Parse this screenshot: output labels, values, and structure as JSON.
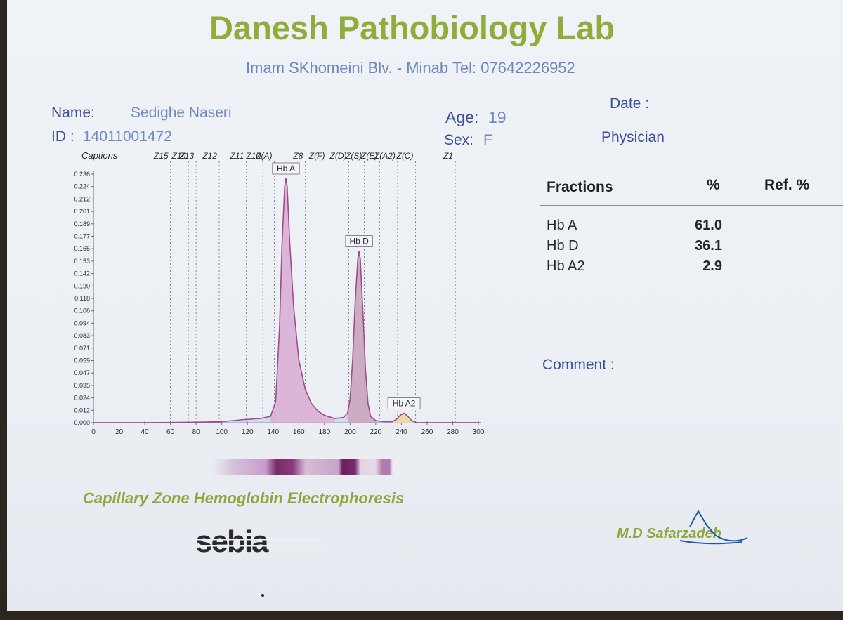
{
  "lab": {
    "name": "Danesh Pathobiology Lab",
    "address": "Imam SKhomeini Blv. - Minab Tel: 07642226952"
  },
  "patient": {
    "name_label": "Name:",
    "name": "Sedighe Naseri",
    "id_label": "ID :",
    "id": "14011001472",
    "age_label": "Age:",
    "age": "19",
    "sex_label": "Sex:",
    "sex": "F",
    "date_label": "Date :",
    "physician_label": "Physician"
  },
  "results": {
    "headers": {
      "fraction": "Fractions",
      "percent": "%",
      "ref": "Ref. %"
    },
    "rows": [
      {
        "name": "Hb A",
        "percent": "61.0"
      },
      {
        "name": "Hb D",
        "percent": "36.1"
      },
      {
        "name": "Hb A2",
        "percent": "2.9"
      }
    ]
  },
  "comment_label": "Comment :",
  "method": "Capillary Zone Hemoglobin Electrophoresis",
  "signature": "M.D Safarzadeh",
  "logo": "sebia",
  "colors": {
    "title_green": "#90ad3c",
    "label_blue": "#3b4f9a",
    "hba_fill": "#e0a8d2",
    "hbd_fill": "#c9a0b8",
    "hba2_fill": "#f0d9a2",
    "curve": "#a04b8c"
  },
  "chart_data": {
    "type": "line",
    "captions_label": "Captions",
    "zones": [
      {
        "label": "Z15",
        "x": 60
      },
      {
        "label": "Z14",
        "x": 74
      },
      {
        "label": "Z13",
        "x": 80
      },
      {
        "label": "Z12",
        "x": 98
      },
      {
        "label": "Z11",
        "x": 119
      },
      {
        "label": "Z10",
        "x": 132
      },
      {
        "label": "Z(A)",
        "x": 141
      },
      {
        "label": "Z8",
        "x": 165
      },
      {
        "label": "Z(F)",
        "x": 182
      },
      {
        "label": "Z(D)",
        "x": 199
      },
      {
        "label": "Z(S)",
        "x": 211
      },
      {
        "label": "Z(E)",
        "x": 223
      },
      {
        "label": "Z(A2)",
        "x": 237
      },
      {
        "label": "Z(C)",
        "x": 251
      },
      {
        "label": "Z1",
        "x": 282
      }
    ],
    "yticks": [
      "0.000",
      "0.012",
      "0.024",
      "0.035",
      "0.047",
      "0.059",
      "0.071",
      "0.083",
      "0.094",
      "0.106",
      "0.118",
      "0.130",
      "0.142",
      "0.153",
      "0.165",
      "0.177",
      "0.189",
      "0.201",
      "0.212",
      "0.224",
      "0.236"
    ],
    "xticks": [
      "0",
      "20",
      "40",
      "60",
      "80",
      "100",
      "120",
      "140",
      "160",
      "180",
      "200",
      "220",
      "240",
      "260",
      "280",
      "300"
    ],
    "xlim": [
      0,
      300
    ],
    "ylim": [
      0,
      0.236
    ],
    "peaks": [
      {
        "name": "Hb A",
        "x": 150,
        "y": 0.232,
        "fill": "#e0a8d2"
      },
      {
        "name": "Hb D",
        "x": 207,
        "y": 0.163,
        "fill": "#c9a0b8"
      },
      {
        "name": "Hb A2",
        "x": 242,
        "y": 0.009,
        "fill": "#f0d9a2"
      }
    ],
    "curve": [
      [
        0,
        0.0
      ],
      [
        40,
        0.0
      ],
      [
        80,
        0.0005
      ],
      [
        100,
        0.001
      ],
      [
        118,
        0.003
      ],
      [
        130,
        0.004
      ],
      [
        138,
        0.006
      ],
      [
        142,
        0.02
      ],
      [
        145,
        0.09
      ],
      [
        147,
        0.17
      ],
      [
        149,
        0.224
      ],
      [
        150,
        0.232
      ],
      [
        151,
        0.224
      ],
      [
        153,
        0.17
      ],
      [
        156,
        0.11
      ],
      [
        160,
        0.06
      ],
      [
        165,
        0.032
      ],
      [
        170,
        0.018
      ],
      [
        175,
        0.011
      ],
      [
        180,
        0.007
      ],
      [
        188,
        0.004
      ],
      [
        195,
        0.005
      ],
      [
        198,
        0.009
      ],
      [
        200,
        0.022
      ],
      [
        202,
        0.06
      ],
      [
        204,
        0.115
      ],
      [
        206,
        0.155
      ],
      [
        207,
        0.163
      ],
      [
        208,
        0.155
      ],
      [
        210,
        0.105
      ],
      [
        212,
        0.05
      ],
      [
        214,
        0.018
      ],
      [
        216,
        0.006
      ],
      [
        220,
        0.002
      ],
      [
        226,
        0.001
      ],
      [
        233,
        0.001
      ],
      [
        236,
        0.003
      ],
      [
        239,
        0.007
      ],
      [
        242,
        0.009
      ],
      [
        245,
        0.006
      ],
      [
        248,
        0.002
      ],
      [
        252,
        0.0
      ],
      [
        260,
        0.0
      ],
      [
        300,
        0.0
      ]
    ]
  }
}
